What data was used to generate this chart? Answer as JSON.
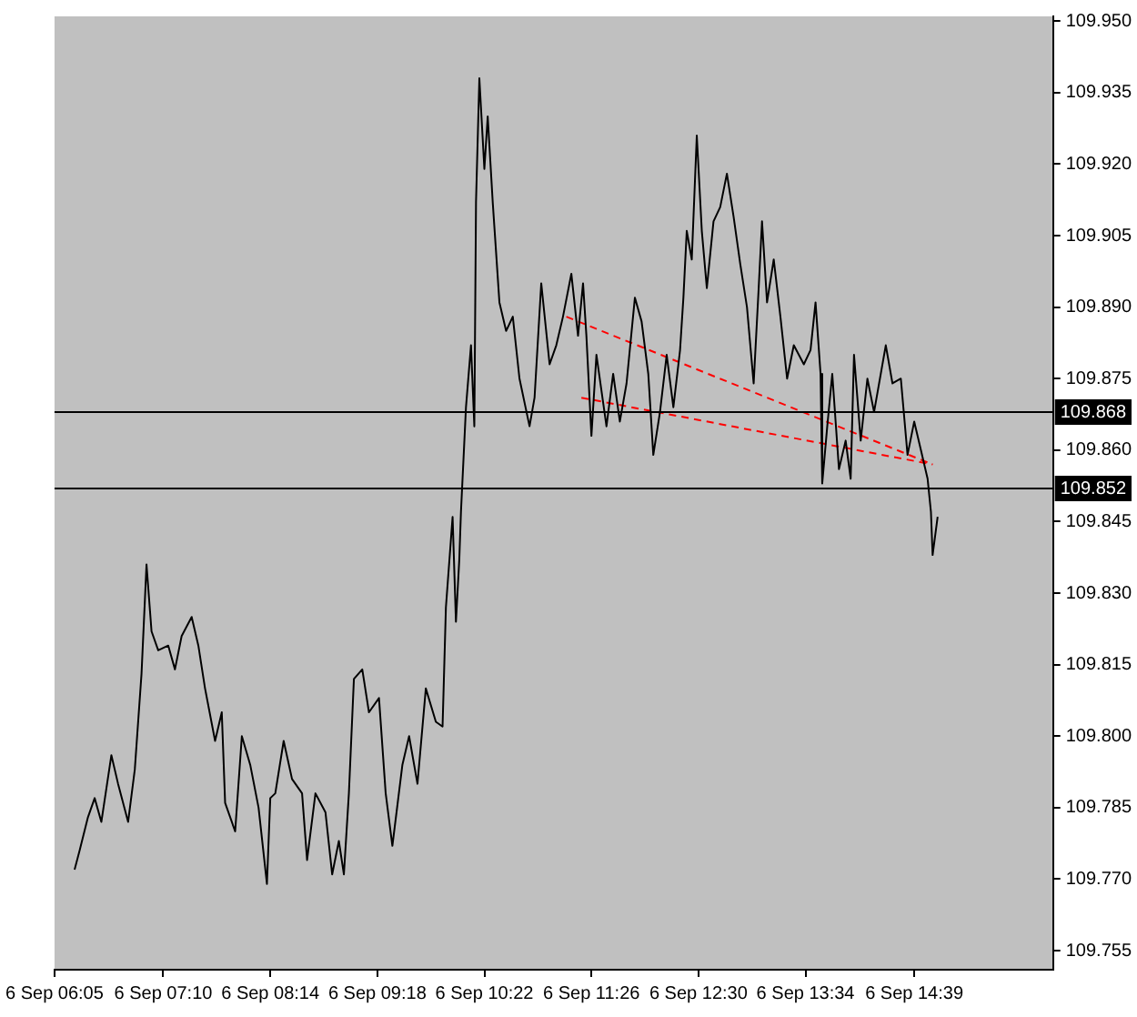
{
  "chart_data": {
    "type": "line",
    "legend": false,
    "grid": false,
    "marker": "none",
    "xlim": [
      "--09-06T06:05",
      "--09-06T16:02"
    ],
    "xticks": [
      {
        "value": "--09-06T06:05",
        "label": "6 Sep 06:05"
      },
      {
        "value": "--09-06T07:10",
        "label": "6 Sep 07:10"
      },
      {
        "value": "--09-06T08:14",
        "label": "6 Sep 08:14"
      },
      {
        "value": "--09-06T09:18",
        "label": "6 Sep 09:18"
      },
      {
        "value": "--09-06T10:22",
        "label": "6 Sep 10:22"
      },
      {
        "value": "--09-06T11:26",
        "label": "6 Sep 11:26"
      },
      {
        "value": "--09-06T12:30",
        "label": "6 Sep 12:30"
      },
      {
        "value": "--09-06T13:34",
        "label": "6 Sep 13:34"
      },
      {
        "value": "--09-06T14:39",
        "label": "6 Sep 14:39"
      }
    ],
    "ylim": [
      109.751,
      109.951
    ],
    "yticks": [
      109.755,
      {
        "value": 109.77,
        "label": "109.770"
      },
      109.785,
      {
        "value": 109.8,
        "label": "109.800"
      },
      109.815,
      {
        "value": 109.83,
        "label": "109.830"
      },
      109.845,
      {
        "value": 109.86,
        "label": "109.860"
      },
      109.875,
      {
        "value": 109.89,
        "label": "109.890"
      },
      109.905,
      {
        "value": 109.92,
        "label": "109.920"
      },
      109.935,
      {
        "value": 109.95,
        "label": "109.950"
      }
    ],
    "ref_lines": [
      {
        "axis": "y",
        "value": 109.868,
        "label": "109.868",
        "color": "#000000"
      },
      {
        "axis": "y",
        "value": 109.852,
        "label": "109.852",
        "color": "#000000"
      }
    ],
    "series": [
      {
        "color": "#000000",
        "x": [
          "--09-06T06:17",
          "--09-06T06:20",
          "--09-06T06:25",
          "--09-06T06:29",
          "--09-06T06:33",
          "--09-06T06:39",
          "--09-06T06:43",
          "--09-06T06:49",
          "--09-06T06:53",
          "--09-06T06:57",
          "--09-06T07:00",
          "--09-06T07:03",
          "--09-06T07:07",
          "--09-06T07:13",
          "--09-06T07:17",
          "--09-06T07:21",
          "--09-06T07:27",
          "--09-06T07:31",
          "--09-06T07:35",
          "--09-06T07:41",
          "--09-06T07:45",
          "--09-06T07:47",
          "--09-06T07:53",
          "--09-06T07:57",
          "--09-06T08:02",
          "--09-06T08:07",
          "--09-06T08:12",
          "--09-06T08:14",
          "--09-06T08:17",
          "--09-06T08:22",
          "--09-06T08:27",
          "--09-06T08:33",
          "--09-06T08:36",
          "--09-06T08:41",
          "--09-06T08:47",
          "--09-06T08:51",
          "--09-06T08:55",
          "--09-06T08:58",
          "--09-06T09:01",
          "--09-06T09:04",
          "--09-06T09:09",
          "--09-06T09:13",
          "--09-06T09:19",
          "--09-06T09:23",
          "--09-06T09:27",
          "--09-06T09:33",
          "--09-06T09:37",
          "--09-06T09:42",
          "--09-06T09:47",
          "--09-06T09:53",
          "--09-06T09:57",
          "--09-06T09:59",
          "--09-06T10:03",
          "--09-06T10:05",
          "--09-06T10:07",
          "--09-06T10:08",
          "--09-06T10:11",
          "--09-06T10:14",
          "--09-06T10:16",
          "--09-06T10:17",
          "--09-06T10:19",
          "--09-06T10:22",
          "--09-06T10:24",
          "--09-06T10:27",
          "--09-06T10:31",
          "--09-06T10:35",
          "--09-06T10:39",
          "--09-06T10:43",
          "--09-06T10:49",
          "--09-06T10:52",
          "--09-06T10:56",
          "--09-06T11:01",
          "--09-06T11:05",
          "--09-06T11:09",
          "--09-06T11:14",
          "--09-06T11:18",
          "--09-06T11:21",
          "--09-06T11:23",
          "--09-06T11:26",
          "--09-06T11:29",
          "--09-06T11:35",
          "--09-06T11:39",
          "--09-06T11:43",
          "--09-06T11:47",
          "--09-06T11:52",
          "--09-06T11:56",
          "--09-06T12:00",
          "--09-06T12:03",
          "--09-06T12:07",
          "--09-06T12:11",
          "--09-06T12:15",
          "--09-06T12:19",
          "--09-06T12:21",
          "--09-06T12:23",
          "--09-06T12:26",
          "--09-06T12:29",
          "--09-06T12:32",
          "--09-06T12:35",
          "--09-06T12:39",
          "--09-06T12:43",
          "--09-06T12:47",
          "--09-06T12:51",
          "--09-06T12:55",
          "--09-06T12:59",
          "--09-06T13:03",
          "--09-06T13:06",
          "--09-06T13:08",
          "--09-06T13:11",
          "--09-06T13:15",
          "--09-06T13:19",
          "--09-06T13:23",
          "--09-06T13:27",
          "--09-06T13:33",
          "--09-06T13:37",
          "--09-06T13:40",
          "--09-06T13:43",
          "--09-06T13:44",
          "--09-06T13:47",
          "--09-06T13:50",
          "--09-06T13:54",
          "--09-06T13:58",
          "--09-06T14:01",
          "--09-06T14:03",
          "--09-06T14:07",
          "--09-06T14:11",
          "--09-06T14:15",
          "--09-06T14:19",
          "--09-06T14:22",
          "--09-06T14:26",
          "--09-06T14:31",
          "--09-06T14:35",
          "--09-06T14:39",
          "--09-06T14:43",
          "--09-06T14:47",
          "--09-06T14:49",
          "--09-06T14:50",
          "--09-06T14:53"
        ],
        "values": [
          109.772,
          109.776,
          109.783,
          109.787,
          109.782,
          109.796,
          109.79,
          109.782,
          109.793,
          109.813,
          109.836,
          109.822,
          109.818,
          109.819,
          109.814,
          109.821,
          109.825,
          109.819,
          109.81,
          109.799,
          109.805,
          109.786,
          109.78,
          109.8,
          109.794,
          109.785,
          109.769,
          109.787,
          109.788,
          109.799,
          109.791,
          109.788,
          109.774,
          109.788,
          109.784,
          109.771,
          109.778,
          109.771,
          109.788,
          109.812,
          109.814,
          109.805,
          109.808,
          109.788,
          109.777,
          109.794,
          109.8,
          109.79,
          109.81,
          109.803,
          109.802,
          109.827,
          109.846,
          109.824,
          109.837,
          109.847,
          109.869,
          109.882,
          109.865,
          109.912,
          109.938,
          109.919,
          109.93,
          109.912,
          109.891,
          109.885,
          109.888,
          109.875,
          109.865,
          109.871,
          109.895,
          109.878,
          109.882,
          109.888,
          109.897,
          109.884,
          109.895,
          109.884,
          109.863,
          109.88,
          109.865,
          109.876,
          109.866,
          109.874,
          109.892,
          109.887,
          109.876,
          109.859,
          109.868,
          109.88,
          109.869,
          109.881,
          109.892,
          109.906,
          109.9,
          109.926,
          109.906,
          109.894,
          109.908,
          109.911,
          109.918,
          109.909,
          109.899,
          109.89,
          109.874,
          109.894,
          109.908,
          109.891,
          109.9,
          109.888,
          109.875,
          109.882,
          109.878,
          109.881,
          109.891,
          109.876,
          109.853,
          109.865,
          109.876,
          109.856,
          109.862,
          109.854,
          109.88,
          109.862,
          109.875,
          109.868,
          109.876,
          109.882,
          109.874,
          109.875,
          109.859,
          109.866,
          109.86,
          109.854,
          109.847,
          109.838,
          109.846
        ]
      },
      {
        "type": "line",
        "color": "#ff0000",
        "line_style": "dashed",
        "x": [
          "--09-06T11:11",
          "--09-06T14:50"
        ],
        "values": [
          109.888,
          109.857
        ]
      },
      {
        "type": "line",
        "color": "#ff0000",
        "line_style": "dashed",
        "x": [
          "--09-06T11:20",
          "--09-06T14:50"
        ],
        "values": [
          109.871,
          109.857
        ]
      }
    ]
  }
}
